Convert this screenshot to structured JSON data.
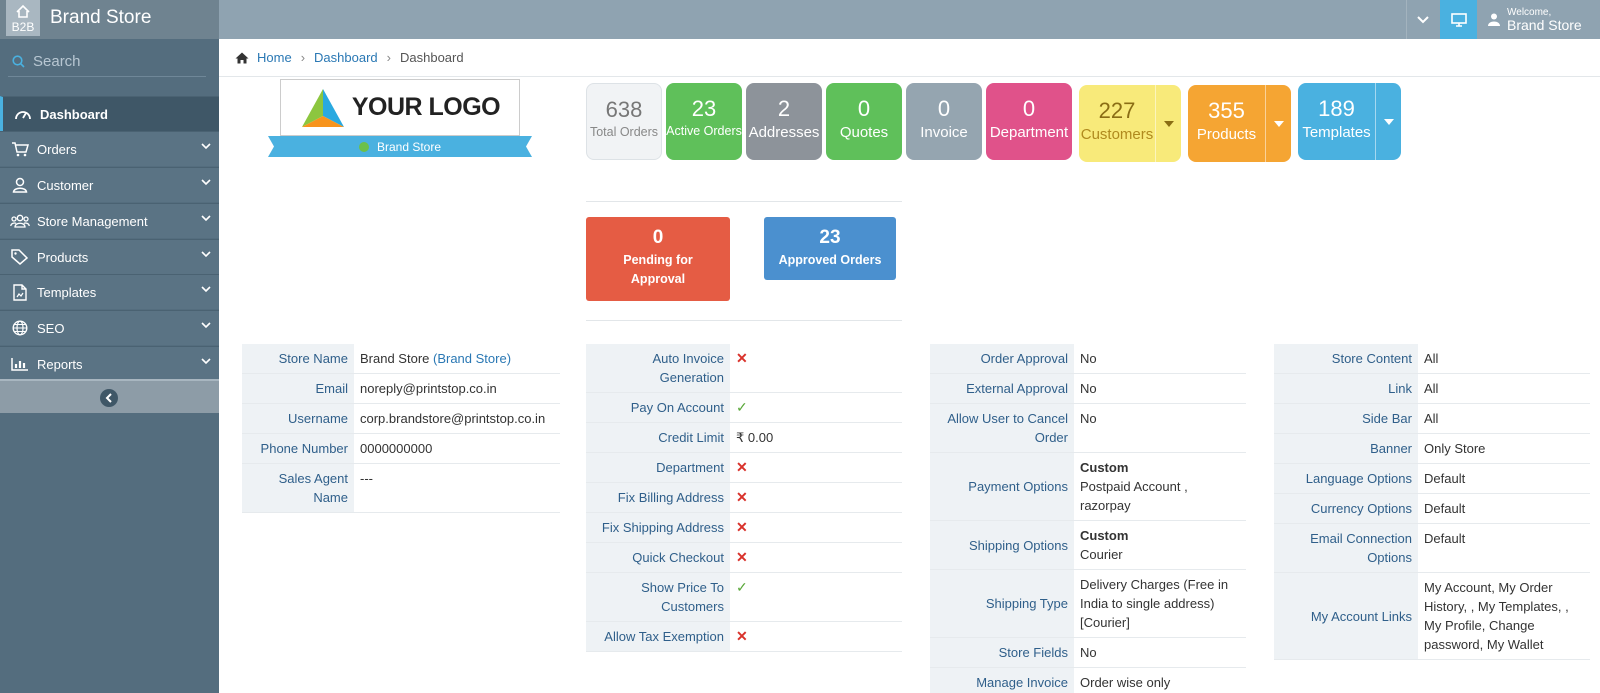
{
  "header": {
    "b2b_label": "B2B",
    "brand_title": "Brand Store",
    "welcome": "Welcome,",
    "user_name": "Brand Store"
  },
  "sidebar": {
    "search_placeholder": "Search",
    "items": [
      {
        "label": "Dashboard",
        "icon": "dashboard-icon",
        "active": true
      },
      {
        "label": "Orders",
        "icon": "cart-icon"
      },
      {
        "label": "Customer",
        "icon": "user-icon"
      },
      {
        "label": "Store Management",
        "icon": "users-icon"
      },
      {
        "label": "Products",
        "icon": "tags-icon"
      },
      {
        "label": "Templates",
        "icon": "file-icon"
      },
      {
        "label": "SEO",
        "icon": "globe-icon"
      },
      {
        "label": "Reports",
        "icon": "bar-chart-icon"
      }
    ]
  },
  "breadcrumb": {
    "home": "Home",
    "link": "Dashboard",
    "current": "Dashboard"
  },
  "logo": {
    "text": "YOUR LOGO",
    "store_label": "Brand Store"
  },
  "tiles": [
    {
      "num": "638",
      "label": "Total Orders"
    },
    {
      "num": "23",
      "label": "Active Orders"
    },
    {
      "num": "2",
      "label": "Addresses"
    },
    {
      "num": "0",
      "label": "Quotes"
    },
    {
      "num": "0",
      "label": "Invoice"
    },
    {
      "num": "0",
      "label": "Department"
    },
    {
      "num": "227",
      "label": "Customers"
    },
    {
      "num": "355",
      "label": "Products"
    },
    {
      "num": "189",
      "label": "Templates"
    }
  ],
  "approvals": {
    "pending_num": "0",
    "pending_label_1": "Pending for",
    "pending_label_2": "Approval",
    "approved_num": "23",
    "approved_label": "Approved Orders"
  },
  "store_info": [
    {
      "k": "Store Name",
      "v": "Brand Store",
      "v_link": "(Brand Store)"
    },
    {
      "k": "Email",
      "v": "noreply@printstop.co.in"
    },
    {
      "k": "Username",
      "v": "corp.brandstore@printstop.co.in"
    },
    {
      "k": "Phone Number",
      "v": "0000000000"
    },
    {
      "k1": "Sales Agent",
      "k2": "Name",
      "v": "---"
    }
  ],
  "settings_1": {
    "auto_invoice_1": "Auto Invoice",
    "auto_invoice_2": "Generation",
    "pay_on_account": "Pay On Account",
    "credit_limit": "Credit Limit",
    "credit_limit_value": "₹ 0.00",
    "department": "Department",
    "fix_billing": "Fix Billing Address",
    "fix_shipping": "Fix Shipping Address",
    "quick_checkout": "Quick Checkout",
    "show_price_1": "Show Price To",
    "show_price_2": "Customers",
    "tax_exemption": "Allow Tax Exemption"
  },
  "settings_2": {
    "order_approval": "Order Approval",
    "order_approval_v": "No",
    "external_approval": "External Approval",
    "external_approval_v": "No",
    "cancel_1": "Allow User to Cancel",
    "cancel_2": "Order",
    "cancel_v": "No",
    "payment_k": "Payment Options",
    "payment_title": "Custom",
    "payment_v1": "Postpaid Account ,",
    "payment_v2": "razorpay",
    "shipping_k": "Shipping Options",
    "shipping_title": "Custom",
    "shipping_v": "Courier",
    "ship_type_k": "Shipping Type",
    "ship_type_v1": "Delivery Charges (Free in",
    "ship_type_v2": "India to single address)",
    "ship_type_v3": "[Courier]",
    "store_fields_k": "Store Fields",
    "store_fields_v": "No",
    "manage_invoice_k": "Manage Invoice",
    "manage_invoice_v": "Order wise only"
  },
  "settings_3": {
    "store_content": "Store Content",
    "store_content_v": "All",
    "link": "Link",
    "link_v": "All",
    "side_bar": "Side Bar",
    "side_bar_v": "All",
    "banner": "Banner",
    "banner_v": "Only Store",
    "language": "Language Options",
    "language_v": "Default",
    "currency": "Currency Options",
    "currency_v": "Default",
    "email_1": "Email Connection",
    "email_2": "Options",
    "email_v": "Default",
    "account_links": "My Account Links",
    "account_v1": "My Account, My Order",
    "account_v2": "History, , My Templates, ,",
    "account_v3": "My Profile, Change",
    "account_v4": "password, My Wallet"
  },
  "colors": {
    "sidebar": "#546d7e",
    "topbar": "#8fa3b1",
    "accent": "#4ab1e0",
    "green": "#5fc05a",
    "gray": "#8d939a",
    "slate": "#95a5b0",
    "pink": "#e0528a",
    "yellow": "#f8ea7a",
    "orange": "#f5a533",
    "blue": "#4ab1e0",
    "red": "#e55c44",
    "steel": "#4b90cf"
  }
}
